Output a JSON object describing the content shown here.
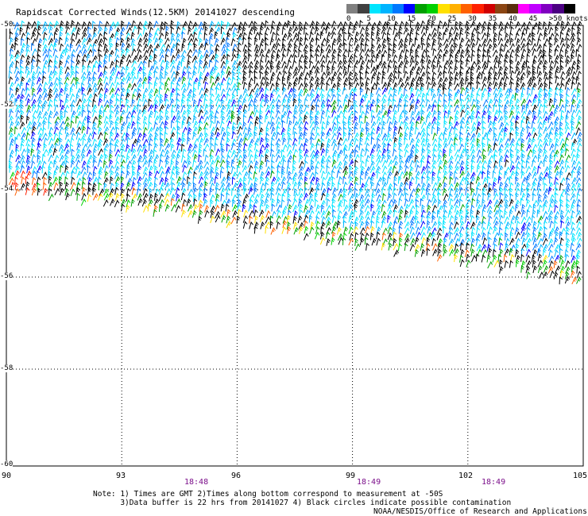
{
  "title": "Rapidscat Corrected Winds(12.5KM) 20141027 descending",
  "colorbar": {
    "colors": [
      "#808080",
      "#404040",
      "#00e5ff",
      "#00b4ff",
      "#0078ff",
      "#0000ff",
      "#00a000",
      "#00d000",
      "#ffe000",
      "#ffb000",
      "#ff6000",
      "#ff2000",
      "#d00000",
      "#8b4513",
      "#5a2d0c",
      "#ff00ff",
      "#c000ff",
      "#8000c0",
      "#4b0082",
      "#000000"
    ],
    "labels": [
      "0",
      "5",
      "10",
      "15",
      "20",
      "25",
      "30",
      "35",
      "40",
      "45",
      ">50 knots"
    ]
  },
  "axes": {
    "lon_labels": [
      "90",
      "93",
      "96",
      "99",
      "102",
      "105"
    ],
    "lat_labels": [
      "-50",
      "-52",
      "-54",
      "-56",
      "-58",
      "-60"
    ],
    "lon_range": [
      90,
      105
    ],
    "lat_range": [
      -60,
      -50
    ]
  },
  "times": [
    "18:48",
    "18:49",
    "18:49"
  ],
  "note_lines": [
    "Note: 1) Times are GMT 2)Times along bottom correspond to measurement at -50S",
    "      3)Data buffer is 22 hrs from 20141027 4) Black circles indicate possible contamination"
  ],
  "credit": "NOAA/NESDIS/Office of Research and Applications",
  "wind_color_scale": [
    "#00e5ff",
    "#00b4ff",
    "#0078ff",
    "#0000ff",
    "#00a000",
    "#00d000",
    "#ffe000",
    "#ffb000",
    "#ff6000",
    "#ff2000",
    "#000000"
  ]
}
